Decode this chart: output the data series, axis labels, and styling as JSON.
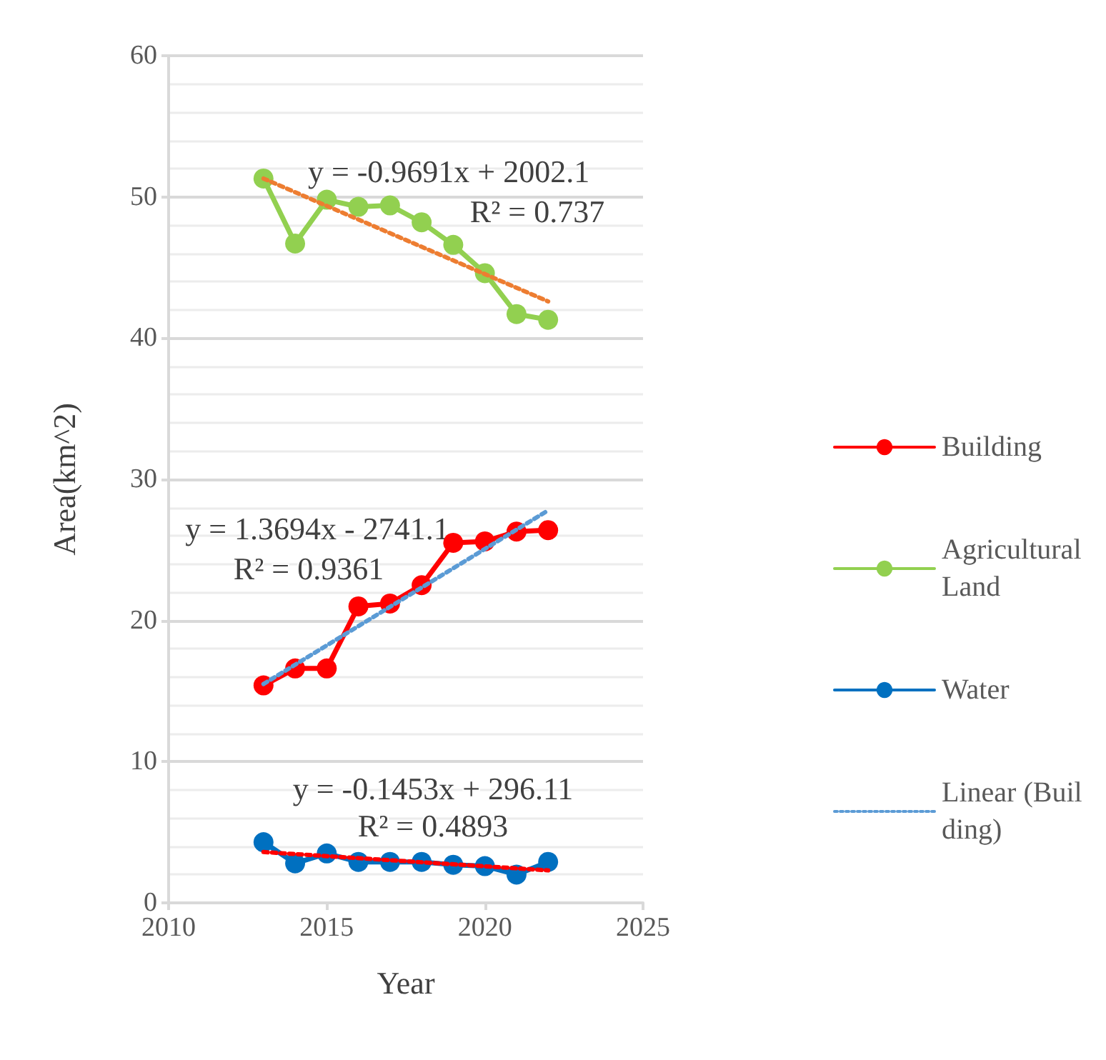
{
  "chart_data": {
    "type": "line",
    "xlabel": "Year",
    "ylabel": "Area(km^2)",
    "xlim": [
      2010,
      2025
    ],
    "xticks": [
      2010,
      2015,
      2020,
      2025
    ],
    "ylim": [
      0,
      60
    ],
    "yticks": [
      0,
      10,
      20,
      30,
      40,
      50,
      60
    ],
    "grid": "y",
    "legend": "right",
    "marker": "circle",
    "line_style": "solid",
    "series": [
      {
        "name": "Building",
        "color": "#ff0000",
        "x": [
          2013,
          2014,
          2015,
          2016,
          2017,
          2018,
          2019,
          2020,
          2021,
          2022
        ],
        "values": [
          15.4,
          16.6,
          16.6,
          21.0,
          21.2,
          22.5,
          25.5,
          25.6,
          26.3,
          26.4
        ]
      },
      {
        "name": "AgriculturalLand",
        "color": "#92d050",
        "x": [
          2013,
          2014,
          2015,
          2016,
          2017,
          2018,
          2019,
          2020,
          2021,
          2022
        ],
        "values": [
          51.3,
          46.7,
          49.8,
          49.3,
          49.4,
          48.2,
          46.6,
          44.6,
          41.7,
          41.3
        ]
      },
      {
        "name": "Water",
        "color": "#0070c0",
        "x": [
          2013,
          2014,
          2015,
          2016,
          2017,
          2018,
          2019,
          2020,
          2021,
          2022
        ],
        "values": [
          4.3,
          2.8,
          3.5,
          2.9,
          2.9,
          2.9,
          2.7,
          2.6,
          2.0,
          2.9
        ]
      },
      {
        "name": "Linear (Building)",
        "color": "#5b9bd5",
        "marker": "none",
        "line_style": "dotted",
        "x": [
          2013,
          2022
        ],
        "values": [
          15.5,
          27.8
        ]
      },
      {
        "color": "#ed7d31",
        "marker": "none",
        "line_style": "dotted",
        "x": [
          2013,
          2022
        ],
        "values": [
          51.3,
          42.6
        ]
      },
      {
        "color": "#ff0000",
        "marker": "none",
        "line_style": "dotted",
        "x": [
          2013,
          2022
        ],
        "values": [
          3.6,
          2.3
        ]
      }
    ],
    "annotations": [
      "y = -0.9691x + 2002.1",
      "R² = 0.737",
      "y = 1.3694x - 2741.1",
      "R² = 0.9361",
      "y = -0.1453x + 296.11",
      "R² = 0.4893"
    ]
  }
}
